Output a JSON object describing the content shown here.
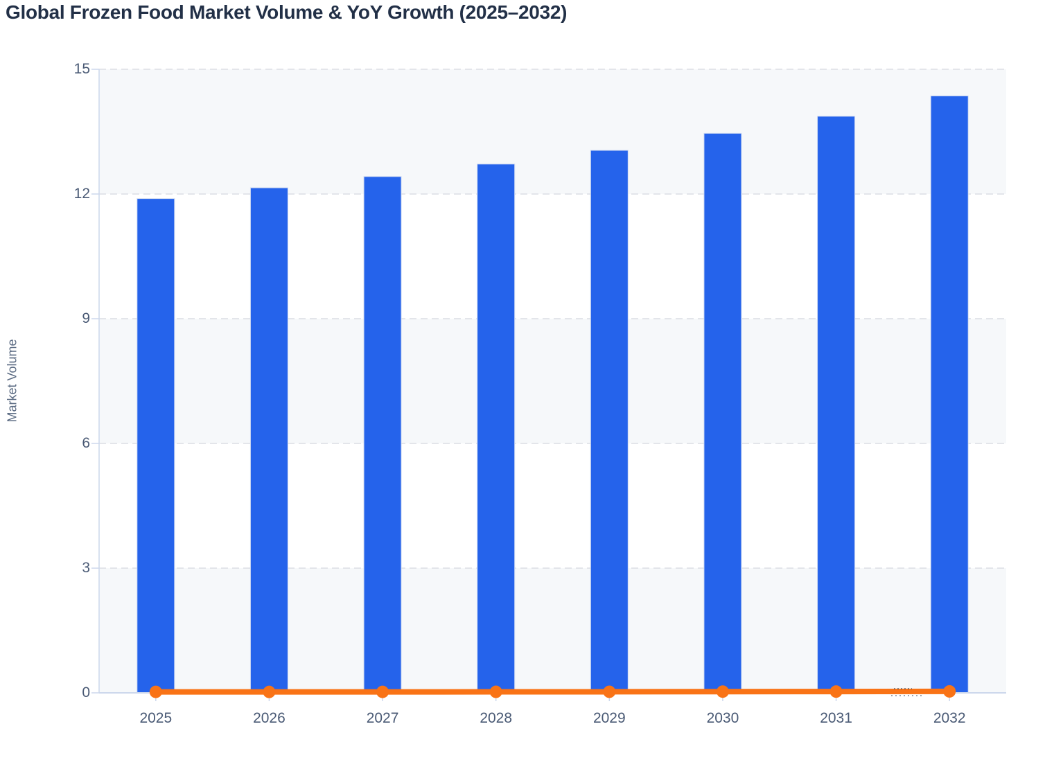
{
  "chart": {
    "title": "Global Frozen Food Market Volume & YoY Growth (2025–2032)",
    "ylabel": "Market Volume"
  },
  "chart_data": {
    "type": "bar",
    "combo": "bar+line",
    "title": "Global Frozen Food Market Volume & YoY Growth (2025–2032)",
    "categories": [
      "2025",
      "2026",
      "2027",
      "2028",
      "2029",
      "2030",
      "2031",
      "2032"
    ],
    "series": [
      {
        "name": "Market Volume",
        "type": "column",
        "color": "#2563eb",
        "values": [
          11.89,
          12.15,
          12.42,
          12.72,
          13.05,
          13.46,
          13.87,
          14.36
        ]
      },
      {
        "name": "YoY Growth",
        "type": "line",
        "color": "#f97316",
        "values": [
          0.023,
          0.022,
          0.023,
          0.024,
          0.026,
          0.03,
          0.031,
          0.035
        ],
        "note": "growth fraction plotted on the same 0–15 axis, so the line hugs zero (approx 2.2%–3.5% YoY)"
      }
    ],
    "xlabel": "",
    "ylabel": "Market Volume",
    "ylim": [
      0,
      15
    ],
    "yticks": [
      0,
      3,
      6,
      9,
      12,
      15
    ],
    "grid": "horizontal dashed",
    "legend": "none",
    "plot_bands": [
      [
        0,
        3
      ],
      [
        6,
        9
      ],
      [
        12,
        15
      ]
    ],
    "colors": {
      "bar": "#2563eb",
      "bar_border": "#cfdaf2",
      "line": "#f97316",
      "band": "#f6f8fa",
      "axis": "#ccd7ec",
      "grid": "#e3e5ea",
      "title_text": "#223047",
      "tick_text": "#4a5a75",
      "axis_title_text": "#5a6a82"
    }
  }
}
